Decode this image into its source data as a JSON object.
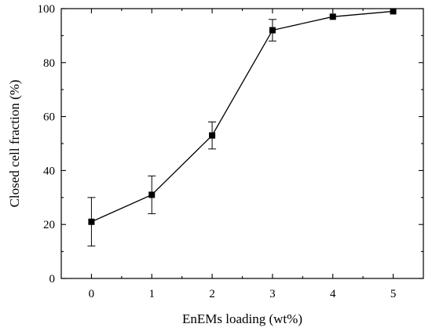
{
  "chart_data": {
    "type": "line",
    "title": "",
    "xlabel": "EnEMs loading (wt%)",
    "ylabel": "Closed cell fraction (%)",
    "xlim": [
      -0.5,
      5.5
    ],
    "ylim": [
      0,
      100
    ],
    "x_ticks": [
      0,
      1,
      2,
      3,
      4,
      5
    ],
    "x_tick_labels": [
      "0",
      "1",
      "2",
      "3",
      "4",
      "5"
    ],
    "y_ticks": [
      0,
      20,
      40,
      60,
      80,
      100
    ],
    "y_tick_labels": [
      "0",
      "20",
      "40",
      "60",
      "80",
      "100"
    ],
    "grid": false,
    "marker": "square",
    "series": [
      {
        "x": [
          0,
          1,
          2,
          3,
          4,
          5
        ],
        "y": [
          21,
          31,
          53,
          92,
          97,
          99
        ],
        "error_low": [
          12,
          24,
          48,
          88,
          null,
          null
        ],
        "error_high": [
          30,
          38,
          58,
          96,
          null,
          null
        ],
        "color": "#000000"
      }
    ]
  }
}
